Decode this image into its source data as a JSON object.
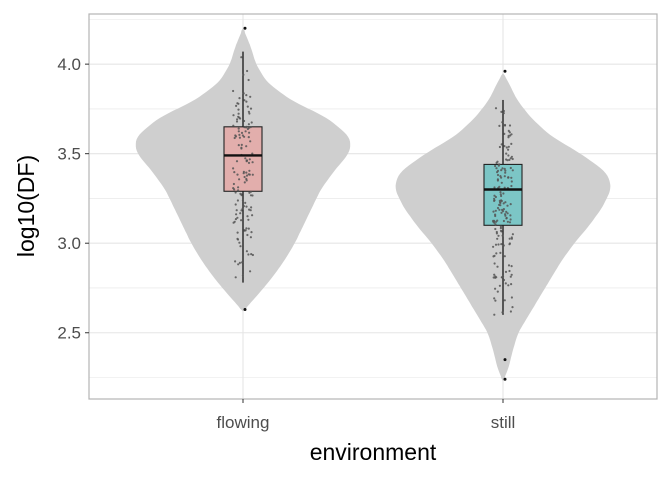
{
  "chart_data": {
    "type": "violin",
    "title": "",
    "xlabel": "environment",
    "ylabel": "log10(DF)",
    "categories": [
      "flowing",
      "still"
    ],
    "ylim": [
      2.13,
      4.28
    ],
    "yticks": [
      2.5,
      3.0,
      3.5,
      4.0
    ],
    "ytick_labels": [
      "2.5",
      "3.0",
      "3.5",
      "4.0"
    ],
    "grid": true,
    "legend": "none",
    "colors": {
      "violin_fill": "#cfcfcf",
      "flowing_box": "#e2aeac",
      "still_box": "#7cc6c6",
      "points": "#555555",
      "grid": "#e5e5e5",
      "panel_border": "#b3b3b3"
    },
    "groups": [
      {
        "name": "flowing",
        "n_points": 140,
        "violin_range": [
          2.62,
          4.2
        ],
        "density_profile": [
          [
            2.62,
            0.0
          ],
          [
            2.7,
            0.12
          ],
          [
            2.8,
            0.26
          ],
          [
            2.9,
            0.38
          ],
          [
            3.0,
            0.48
          ],
          [
            3.1,
            0.56
          ],
          [
            3.2,
            0.64
          ],
          [
            3.3,
            0.72
          ],
          [
            3.4,
            0.84
          ],
          [
            3.5,
            0.98
          ],
          [
            3.55,
            1.0
          ],
          [
            3.6,
            0.98
          ],
          [
            3.7,
            0.78
          ],
          [
            3.8,
            0.44
          ],
          [
            3.9,
            0.22
          ],
          [
            4.0,
            0.12
          ],
          [
            4.1,
            0.07
          ],
          [
            4.2,
            0.0
          ]
        ],
        "box": {
          "q1": 3.29,
          "median": 3.49,
          "q3": 3.65,
          "whisker_low": 2.78,
          "whisker_high": 4.07
        },
        "outliers": [
          2.63,
          4.2
        ]
      },
      {
        "name": "still",
        "n_points": 170,
        "violin_range": [
          2.23,
          3.95
        ],
        "density_profile": [
          [
            2.23,
            0.0
          ],
          [
            2.3,
            0.05
          ],
          [
            2.4,
            0.09
          ],
          [
            2.5,
            0.14
          ],
          [
            2.6,
            0.24
          ],
          [
            2.7,
            0.34
          ],
          [
            2.8,
            0.44
          ],
          [
            2.9,
            0.54
          ],
          [
            3.0,
            0.66
          ],
          [
            3.1,
            0.8
          ],
          [
            3.2,
            0.92
          ],
          [
            3.3,
            1.0
          ],
          [
            3.35,
            0.99
          ],
          [
            3.4,
            0.95
          ],
          [
            3.5,
            0.72
          ],
          [
            3.6,
            0.44
          ],
          [
            3.7,
            0.26
          ],
          [
            3.8,
            0.13
          ],
          [
            3.9,
            0.05
          ],
          [
            3.95,
            0.0
          ]
        ],
        "box": {
          "q1": 3.1,
          "median": 3.3,
          "q3": 3.44,
          "whisker_low": 2.6,
          "whisker_high": 3.8
        },
        "outliers": [
          2.35,
          2.24,
          3.96
        ]
      }
    ]
  }
}
